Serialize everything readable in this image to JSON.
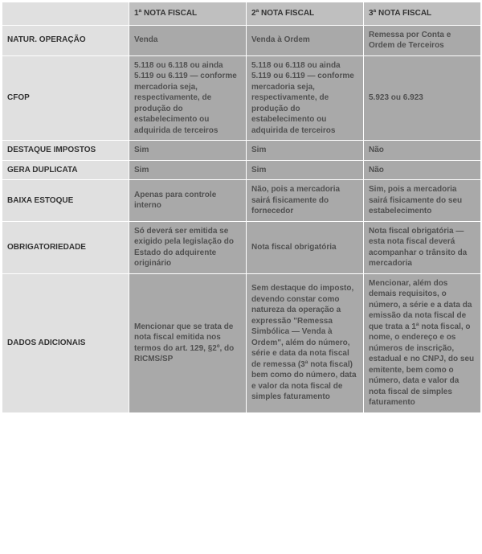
{
  "table": {
    "colors": {
      "header_bg": "#bfbfbf",
      "rowhead_bg": "#e0e0e0",
      "cell_bg": "#a9a9a9",
      "cell_text": "#505050",
      "border": "#ffffff"
    },
    "columns": [
      "",
      "1ª NOTA FISCAL",
      "2ª NOTA FISCAL",
      "3ª NOTA FISCAL"
    ],
    "rows": [
      {
        "label": "NATUR. OPERAÇÃO",
        "cells": [
          "Venda",
          "Venda à Ordem",
          "Remessa por Conta e Ordem de Terceiros"
        ]
      },
      {
        "label": "CFOP",
        "cells": [
          "5.118 ou 6.118 ou ainda 5.119 ou 6.119 — conforme mercadoria seja, respectivamente, de produção do estabelecimento ou adquirida de terceiros",
          "5.118 ou 6.118 ou ainda 5.119 ou 6.119 — conforme mercadoria seja, respectivamente, de produção do estabelecimento ou adquirida de terceiros",
          "5.923 ou 6.923"
        ]
      },
      {
        "label": "DESTAQUE IMPOSTOS",
        "cells": [
          "Sim",
          "Sim",
          "Não"
        ]
      },
      {
        "label": "GERA DUPLICATA",
        "cells": [
          "Sim",
          "Sim",
          "Não"
        ]
      },
      {
        "label": "BAIXA ESTOQUE",
        "cells": [
          "Apenas para controle interno",
          "Não, pois a mercadoria sairá fisicamente do fornecedor",
          "Sim, pois a mercadoria sairá fisicamente do seu estabelecimento"
        ]
      },
      {
        "label": "OBRIGATORIEDADE",
        "cells": [
          "Só deverá ser emitida se exigido pela legislação do Estado do adquirente originário",
          "Nota fiscal obrigatória",
          "Nota fiscal obrigatória — esta nota fiscal deverá acompanhar o trânsito da mercadoria"
        ]
      },
      {
        "label": "DADOS ADICIONAIS",
        "cells": [
          "Mencionar que se trata de nota fiscal emitida nos termos do art. 129, §2º, do RICMS/SP",
          "Sem destaque do imposto, devendo constar como natureza da operação a expressão \"Remessa Simbólica — Venda à Ordem\", além do número, série e data da nota fiscal de remessa (3ª nota fiscal) bem como do número, data e valor da nota fiscal de simples faturamento",
          "Mencionar, além dos demais requisitos, o número, a série e a data da emissão da nota fiscal de que trata a 1ª nota fiscal, o nome, o endereço e os números de inscrição, estadual e no CNPJ, do seu emitente, bem como o número, data e valor da nota fiscal de simples faturamento"
        ]
      }
    ]
  }
}
